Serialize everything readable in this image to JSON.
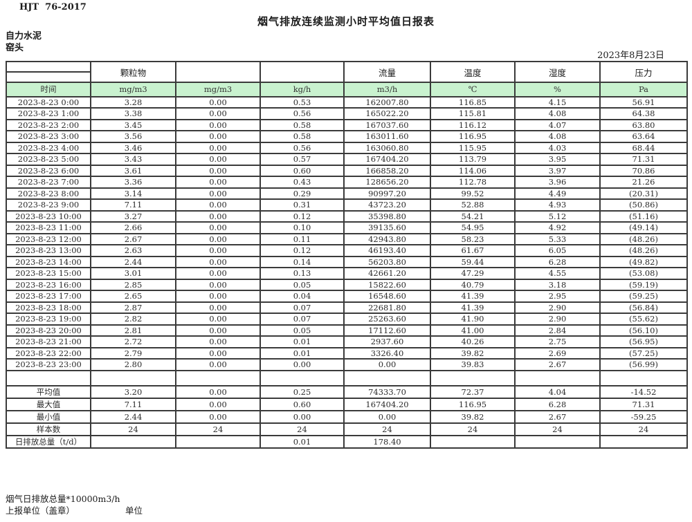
{
  "meta": {
    "standard": "HJT  76-2017",
    "title": "烟气排放连续监测小时平均值日报表",
    "company": "自力水泥",
    "location": "窑头",
    "date": "2023年8月23日"
  },
  "colors": {
    "header_green": "#c9f2cf",
    "negative_red": "#e8352b",
    "border": "#3a3a3a"
  },
  "table": {
    "group_headers": [
      "",
      "颗粒物",
      "",
      "",
      "流量",
      "温度",
      "湿度",
      "压力"
    ],
    "unit_row": [
      "时间",
      "mg/m3",
      "mg/m3",
      "kg/h",
      "m3/h",
      "℃",
      "%",
      "Pa"
    ],
    "rows": [
      [
        "2023-8-23 0:00",
        "3.28",
        "0.00",
        "0.53",
        "162007.80",
        "116.85",
        "4.15",
        "56.91"
      ],
      [
        "2023-8-23 1:00",
        "3.38",
        "0.00",
        "0.56",
        "165022.20",
        "115.81",
        "4.08",
        "64.38"
      ],
      [
        "2023-8-23 2:00",
        "3.45",
        "0.00",
        "0.58",
        "167037.60",
        "116.12",
        "4.07",
        "63.80"
      ],
      [
        "2023-8-23 3:00",
        "3.56",
        "0.00",
        "0.58",
        "163011.60",
        "116.95",
        "4.08",
        "63.64"
      ],
      [
        "2023-8-23 4:00",
        "3.46",
        "0.00",
        "0.56",
        "163060.80",
        "115.95",
        "4.03",
        "68.44"
      ],
      [
        "2023-8-23 5:00",
        "3.43",
        "0.00",
        "0.57",
        "167404.20",
        "113.79",
        "3.95",
        "71.31"
      ],
      [
        "2023-8-23 6:00",
        "3.61",
        "0.00",
        "0.60",
        "166858.20",
        "114.06",
        "3.97",
        "70.86"
      ],
      [
        "2023-8-23 7:00",
        "3.36",
        "0.00",
        "0.43",
        "128656.20",
        "112.78",
        "3.96",
        "21.26"
      ],
      [
        "2023-8-23 8:00",
        "3.14",
        "0.00",
        "0.29",
        "90997.20",
        "99.52",
        "4.49",
        "(20.31)"
      ],
      [
        "2023-8-23 9:00",
        "7.11",
        "0.00",
        "0.31",
        "43723.20",
        "52.88",
        "4.93",
        "(50.86)"
      ],
      [
        "2023-8-23 10:00",
        "3.27",
        "0.00",
        "0.12",
        "35398.80",
        "54.21",
        "5.12",
        "(51.16)"
      ],
      [
        "2023-8-23 11:00",
        "2.66",
        "0.00",
        "0.10",
        "39135.60",
        "54.95",
        "4.92",
        "(49.14)"
      ],
      [
        "2023-8-23 12:00",
        "2.67",
        "0.00",
        "0.11",
        "42943.80",
        "58.23",
        "5.33",
        "(48.26)"
      ],
      [
        "2023-8-23 13:00",
        "2.63",
        "0.00",
        "0.12",
        "46193.40",
        "61.67",
        "6.05",
        "(48.26)"
      ],
      [
        "2023-8-23 14:00",
        "2.44",
        "0.00",
        "0.14",
        "56203.80",
        "59.44",
        "6.28",
        "(49.82)"
      ],
      [
        "2023-8-23 15:00",
        "3.01",
        "0.00",
        "0.13",
        "42661.20",
        "47.29",
        "4.55",
        "(53.08)"
      ],
      [
        "2023-8-23 16:00",
        "2.85",
        "0.00",
        "0.05",
        "15822.60",
        "40.79",
        "3.18",
        "(59.19)"
      ],
      [
        "2023-8-23 17:00",
        "2.65",
        "0.00",
        "0.04",
        "16548.60",
        "41.39",
        "2.95",
        "(59.25)"
      ],
      [
        "2023-8-23 18:00",
        "2.87",
        "0.00",
        "0.07",
        "22681.80",
        "41.39",
        "2.90",
        "(56.84)"
      ],
      [
        "2023-8-23 19:00",
        "2.82",
        "0.00",
        "0.07",
        "25263.60",
        "41.90",
        "2.90",
        "(55.62)"
      ],
      [
        "2023-8-23 20:00",
        "2.81",
        "0.00",
        "0.05",
        "17112.60",
        "41.00",
        "2.84",
        "(56.10)"
      ],
      [
        "2023-8-23 21:00",
        "2.72",
        "0.00",
        "0.01",
        "2937.60",
        "40.26",
        "2.75",
        "(56.95)"
      ],
      [
        "2023-8-23 22:00",
        "2.79",
        "0.00",
        "0.01",
        "3326.40",
        "39.82",
        "2.69",
        "(57.25)"
      ],
      [
        "2023-8-23 23:00",
        "2.80",
        "0.00",
        "0.00",
        "0.00",
        "39.83",
        "2.67",
        "(56.99)"
      ]
    ],
    "summary_rows": [
      [
        "平均值",
        "3.20",
        "0.00",
        "0.25",
        "74333.70",
        "72.37",
        "4.04",
        "-14.52"
      ],
      [
        "最大值",
        "7.11",
        "0.00",
        "0.60",
        "167404.20",
        "116.95",
        "6.28",
        "71.31"
      ],
      [
        "最小值",
        "2.44",
        "0.00",
        "0.00",
        "0.00",
        "39.82",
        "2.67",
        "-59.25"
      ],
      [
        "样本数",
        "24",
        "24",
        "24",
        "24",
        "24",
        "24",
        "24"
      ],
      [
        "日排放总量（t/d）",
        "",
        "",
        "0.01",
        "178.40",
        "",
        "",
        ""
      ]
    ]
  },
  "footer": {
    "note": "烟气日排放总量*10000m3/h",
    "report_unit": "上报单位（盖章）",
    "unit_label": "单位"
  }
}
